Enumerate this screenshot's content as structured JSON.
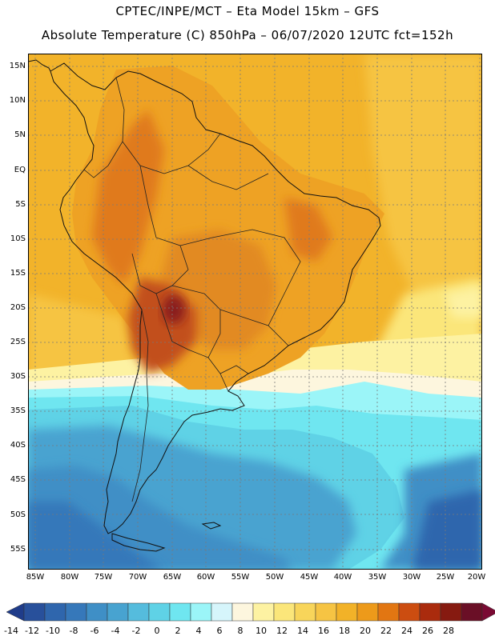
{
  "title_line1": "CPTEC/INPE/MCT –  Eta Model 15km – GFS",
  "title_line2": "Absolute Temperature (C) 850hPa – 06/07/2020 12UTC fct=152h",
  "lat_labels": [
    "15N",
    "10N",
    "5N",
    "EQ",
    "5S",
    "10S",
    "15S",
    "20S",
    "25S",
    "30S",
    "35S",
    "40S",
    "45S",
    "50S",
    "55S"
  ],
  "lon_labels": [
    "85W",
    "80W",
    "75W",
    "70W",
    "65W",
    "60W",
    "55W",
    "50W",
    "45W",
    "40W",
    "35W",
    "30W",
    "25W",
    "20W"
  ],
  "colorbar": {
    "labels": [
      "-14",
      "-12",
      "-10",
      "-8",
      "-6",
      "-4",
      "-2",
      "0",
      "2",
      "4",
      "6",
      "8",
      "10",
      "12",
      "14",
      "16",
      "18",
      "20",
      "22",
      "24",
      "26",
      "28"
    ],
    "colors": [
      "#1f3c8a",
      "#28509b",
      "#2f66ad",
      "#3678ba",
      "#3f8fc6",
      "#48a3d0",
      "#55bcdd",
      "#5fd2e6",
      "#6fe6f0",
      "#9bf5f8",
      "#d6f5fb",
      "#fdf6de",
      "#fdf2a2",
      "#fbe67a",
      "#f8d55a",
      "#f6c443",
      "#f2b228",
      "#ed9a1a",
      "#e27612",
      "#cc4d10",
      "#aa2b0d",
      "#861a10",
      "#6a0f26",
      "#7a0a33"
    ]
  },
  "map_colors": {
    "ocean_warm": "#f2b32a",
    "land_warm": "#eea224",
    "hot": "#e07a1a",
    "hotter": "#c2501a",
    "hottest": "#8a1a1a",
    "pale_yellow": "#fbe67a",
    "cream": "#fdf6de",
    "cyan_light": "#9bf5f8",
    "cyan": "#5fd2e6",
    "blue_mid": "#48a3d0",
    "blue_dark": "#3678ba"
  }
}
